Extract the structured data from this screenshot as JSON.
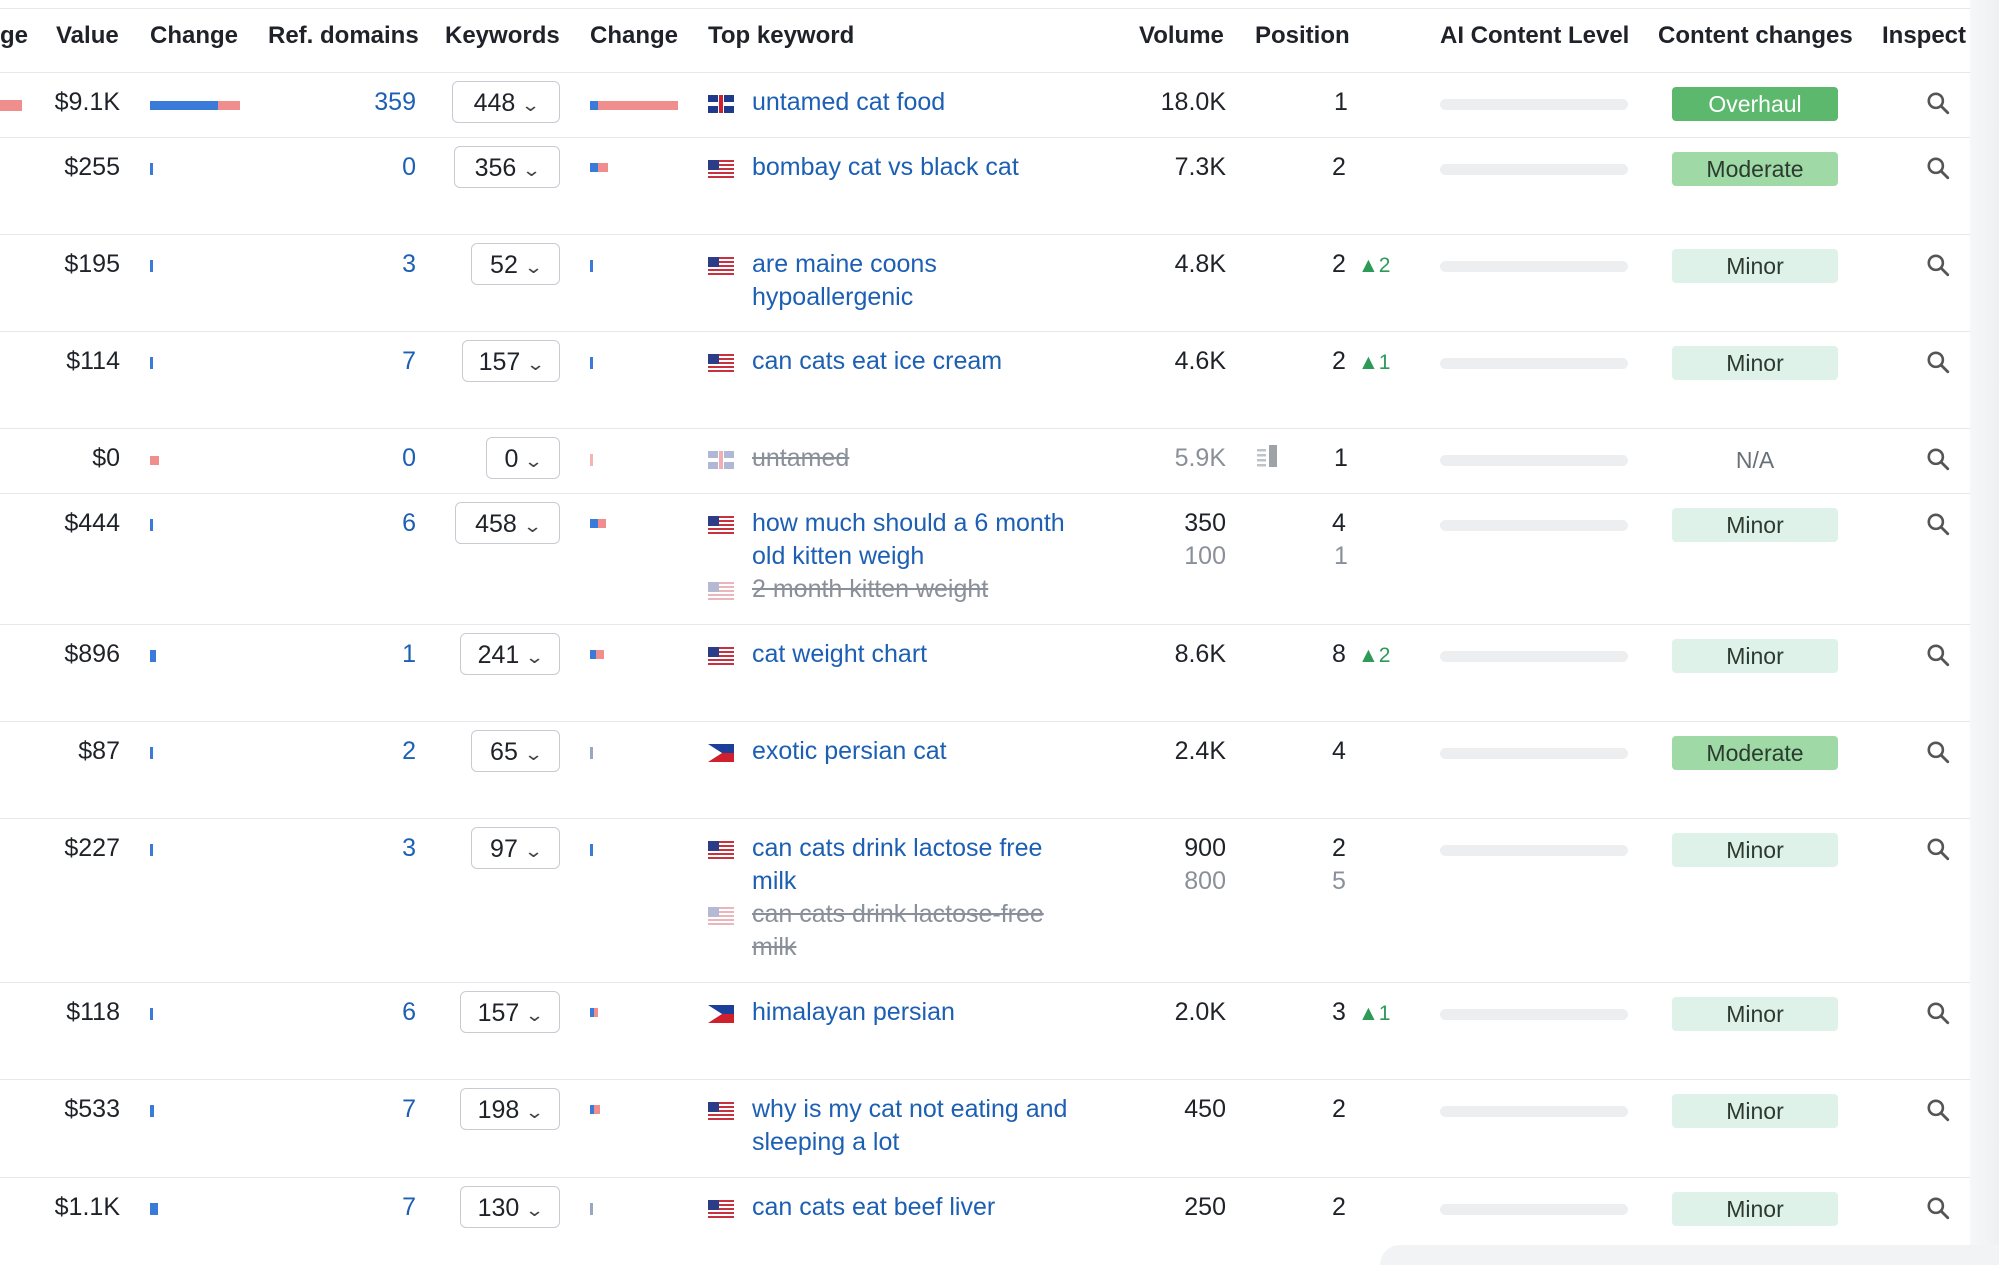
{
  "headers": {
    "traffic_partial": "ge",
    "value": "Value",
    "change": "Change",
    "ref_domains": "Ref. domains",
    "keywords": "Keywords",
    "kw_change": "Change",
    "top_keyword": "Top keyword",
    "volume": "Volume",
    "position": "Position",
    "ai_content_level": "AI Content Level",
    "content_changes": "Content changes",
    "inspect": "Inspect"
  },
  "colors": {
    "link": "#1c5fb3",
    "overhaul": "#5cb86c",
    "moderate": "#9ed9a6",
    "minor": "#dff2ea",
    "up": "#2e9a58"
  },
  "rows": [
    {
      "value": "$9.1K",
      "ref_domains": "359",
      "keywords": "448",
      "flag": "uk",
      "keyword": "untamed cat food",
      "volume": "18.0K",
      "position": "1",
      "pos_change": "",
      "content_change": "Overhaul"
    },
    {
      "value": "$255",
      "ref_domains": "0",
      "keywords": "356",
      "flag": "us",
      "keyword": "bombay cat vs black cat",
      "volume": "7.3K",
      "position": "2",
      "pos_change": "",
      "content_change": "Moderate"
    },
    {
      "value": "$195",
      "ref_domains": "3",
      "keywords": "52",
      "flag": "us",
      "keyword_l1": "are maine coons",
      "keyword_l2": "hypoallergenic",
      "volume": "4.8K",
      "position": "2",
      "pos_change": "2",
      "content_change": "Minor"
    },
    {
      "value": "$114",
      "ref_domains": "7",
      "keywords": "157",
      "flag": "us",
      "keyword": "can cats eat ice cream",
      "volume": "4.6K",
      "position": "2",
      "pos_change": "1",
      "content_change": "Minor"
    },
    {
      "value": "$0",
      "ref_domains": "0",
      "keywords": "0",
      "flag": "uk",
      "keyword": "untamed",
      "volume": "5.9K",
      "position": "1",
      "pos_change": "",
      "content_change": "N/A"
    },
    {
      "value": "$444",
      "ref_domains": "6",
      "keywords": "458",
      "flag": "us",
      "keyword_l1": "how much should a 6 month",
      "keyword_l2": "old kitten weigh",
      "keyword_prev": "2 month kitten weight",
      "volume": "350",
      "volume_prev": "100",
      "position": "4",
      "position_prev": "1",
      "content_change": "Minor"
    },
    {
      "value": "$896",
      "ref_domains": "1",
      "keywords": "241",
      "flag": "us",
      "keyword": "cat weight chart",
      "volume": "8.6K",
      "position": "8",
      "pos_change": "2",
      "content_change": "Minor"
    },
    {
      "value": "$87",
      "ref_domains": "2",
      "keywords": "65",
      "flag": "ph",
      "keyword": "exotic persian cat",
      "volume": "2.4K",
      "position": "4",
      "pos_change": "",
      "content_change": "Moderate"
    },
    {
      "value": "$227",
      "ref_domains": "3",
      "keywords": "97",
      "flag": "us",
      "keyword_l1": "can cats drink lactose free",
      "keyword_l2": "milk",
      "keyword_prev_l1": "can cats drink lactose-free",
      "keyword_prev_l2": "milk",
      "volume": "900",
      "volume_prev": "800",
      "position": "2",
      "position_prev": "5",
      "content_change": "Minor"
    },
    {
      "value": "$118",
      "ref_domains": "6",
      "keywords": "157",
      "flag": "ph",
      "keyword": "himalayan persian",
      "volume": "2.0K",
      "position": "3",
      "pos_change": "1",
      "content_change": "Minor"
    },
    {
      "value": "$533",
      "ref_domains": "7",
      "keywords": "198",
      "flag": "us",
      "keyword_l1": "why is my cat not eating and",
      "keyword_l2": "sleeping a lot",
      "volume": "450",
      "position": "2",
      "pos_change": "",
      "content_change": "Minor"
    },
    {
      "value": "$1.1K",
      "ref_domains": "7",
      "keywords": "130",
      "flag": "us",
      "keyword": "can cats eat beef liver",
      "volume": "250",
      "position": "2",
      "pos_change": "",
      "content_change": "Minor"
    }
  ]
}
